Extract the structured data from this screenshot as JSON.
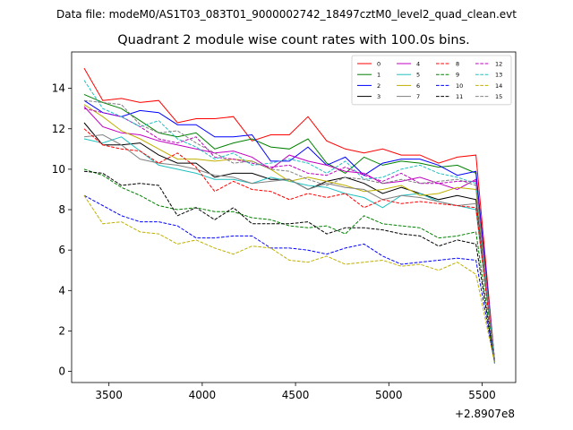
{
  "chart_data": {
    "type": "line",
    "suptitle": "Data file: modeM0/AS1T03_083T01_9000002742_18497cztM0_level2_quad_clean.evt",
    "title": "Quadrant 2 module wise count rates with 100.0s bins.",
    "xlabel": "",
    "ylabel": "",
    "x_offset_label": "+2.8907e8",
    "xlim": [
      3300,
      5680
    ],
    "ylim": [
      -0.55,
      15.8
    ],
    "xticks": [
      3500,
      4000,
      4500,
      5000,
      5500
    ],
    "xtick_labels": [
      "3500",
      "4000",
      "4500",
      "5000",
      "5500"
    ],
    "yticks": [
      0,
      2,
      4,
      6,
      8,
      10,
      12,
      14
    ],
    "ytick_labels": [
      "0",
      "2",
      "4",
      "6",
      "8",
      "10",
      "12",
      "14"
    ],
    "grid": false,
    "legend_position": "top-right",
    "legend_columns": 4,
    "x": [
      3367,
      3467,
      3567,
      3667,
      3767,
      3867,
      3967,
      4067,
      4167,
      4267,
      4367,
      4467,
      4567,
      4667,
      4767,
      4867,
      4967,
      5067,
      5167,
      5267,
      5367,
      5467,
      5567
    ],
    "series": [
      {
        "name": "0",
        "color": "#ff0000",
        "dash": "solid",
        "values": [
          15.0,
          13.4,
          13.5,
          13.3,
          13.4,
          12.3,
          12.5,
          12.5,
          12.6,
          11.4,
          11.7,
          11.7,
          12.6,
          11.4,
          11.0,
          10.8,
          11.0,
          10.7,
          10.7,
          10.3,
          10.6,
          10.7,
          0.5
        ]
      },
      {
        "name": "1",
        "color": "#008000",
        "dash": "solid",
        "values": [
          13.7,
          13.3,
          13.0,
          12.4,
          11.8,
          11.6,
          11.8,
          11.0,
          11.3,
          11.5,
          11.1,
          11.0,
          11.5,
          10.3,
          9.8,
          10.6,
          10.2,
          10.4,
          10.3,
          10.1,
          10.2,
          9.8,
          0.5
        ]
      },
      {
        "name": "2",
        "color": "#0000ff",
        "dash": "solid",
        "values": [
          13.4,
          12.8,
          12.6,
          12.9,
          12.8,
          12.2,
          12.2,
          11.6,
          11.6,
          11.7,
          10.4,
          10.4,
          11.1,
          10.2,
          10.6,
          9.7,
          10.3,
          10.5,
          10.5,
          10.2,
          9.7,
          9.9,
          0.5
        ]
      },
      {
        "name": "3",
        "color": "#000000",
        "dash": "solid",
        "values": [
          12.3,
          11.2,
          11.2,
          11.3,
          10.7,
          10.3,
          10.3,
          9.6,
          9.8,
          9.8,
          9.5,
          9.5,
          9.0,
          9.4,
          9.6,
          9.3,
          8.8,
          9.1,
          8.8,
          8.5,
          8.7,
          8.5,
          0.5
        ]
      },
      {
        "name": "4",
        "color": "#c000c0",
        "dash": "solid",
        "values": [
          13.1,
          12.1,
          11.8,
          11.7,
          11.4,
          11.2,
          11.0,
          10.8,
          10.9,
          10.6,
          10.0,
          10.7,
          10.4,
          10.2,
          9.9,
          9.8,
          9.3,
          9.4,
          9.6,
          9.3,
          9.0,
          9.5,
          0.5
        ]
      },
      {
        "name": "5",
        "color": "#20c0c0",
        "dash": "solid",
        "values": [
          11.5,
          11.3,
          11.6,
          10.9,
          10.2,
          10.0,
          9.8,
          9.5,
          9.5,
          9.3,
          9.6,
          9.4,
          9.2,
          9.1,
          8.8,
          8.6,
          8.1,
          8.7,
          8.8,
          8.4,
          8.2,
          8.0,
          0.5
        ]
      },
      {
        "name": "6",
        "color": "#c0b000",
        "dash": "solid",
        "values": [
          13.2,
          12.6,
          11.9,
          11.5,
          11.0,
          10.5,
          10.5,
          10.4,
          10.5,
          10.4,
          10.0,
          9.4,
          9.6,
          9.4,
          9.2,
          8.9,
          9.0,
          9.2,
          8.7,
          8.8,
          9.1,
          9.0,
          0.5
        ]
      },
      {
        "name": "7",
        "color": "#808080",
        "dash": "solid",
        "values": [
          11.6,
          11.7,
          11.2,
          10.5,
          10.3,
          10.2,
          10.0,
          9.7,
          9.6,
          9.3,
          9.4,
          9.5,
          9.0,
          9.3,
          9.1,
          9.0,
          8.5,
          8.7,
          8.6,
          8.4,
          8.2,
          8.3,
          0.5
        ]
      },
      {
        "name": "8",
        "color": "#ff0000",
        "dash": "dashed",
        "values": [
          12.0,
          11.2,
          11.0,
          10.9,
          10.3,
          10.8,
          10.1,
          8.9,
          9.4,
          9.0,
          8.9,
          8.5,
          8.8,
          8.6,
          8.8,
          8.1,
          8.5,
          8.3,
          8.4,
          8.3,
          8.2,
          8.1,
          0.4
        ]
      },
      {
        "name": "9",
        "color": "#008000",
        "dash": "dashed",
        "values": [
          10.0,
          9.7,
          9.1,
          8.7,
          8.2,
          8.0,
          8.1,
          7.9,
          7.9,
          7.6,
          7.5,
          7.2,
          7.1,
          7.2,
          6.8,
          7.7,
          7.3,
          7.2,
          7.1,
          6.6,
          6.7,
          6.9,
          0.4
        ]
      },
      {
        "name": "10",
        "color": "#0000ff",
        "dash": "dashed",
        "values": [
          8.7,
          8.2,
          7.7,
          7.4,
          7.4,
          7.2,
          6.6,
          6.6,
          6.7,
          6.7,
          6.1,
          6.1,
          6.0,
          5.8,
          6.1,
          6.3,
          5.7,
          5.3,
          5.4,
          5.5,
          5.6,
          5.5,
          0.4
        ]
      },
      {
        "name": "11",
        "color": "#000000",
        "dash": "dashed",
        "values": [
          9.9,
          9.8,
          9.2,
          9.3,
          9.2,
          7.7,
          8.1,
          7.5,
          8.1,
          7.3,
          7.3,
          7.3,
          7.4,
          6.8,
          7.1,
          7.1,
          7.0,
          6.8,
          6.7,
          6.2,
          6.5,
          6.3,
          0.4
        ]
      },
      {
        "name": "12",
        "color": "#c000c0",
        "dash": "dashed",
        "values": [
          13.0,
          12.8,
          12.6,
          12.1,
          11.5,
          11.3,
          11.6,
          10.6,
          10.5,
          10.3,
          10.1,
          10.2,
          9.8,
          9.7,
          10.1,
          9.7,
          9.4,
          9.8,
          9.3,
          9.3,
          9.4,
          9.4,
          0.4
        ]
      },
      {
        "name": "13",
        "color": "#20c0c0",
        "dash": "dashed",
        "values": [
          14.4,
          13.0,
          12.6,
          12.1,
          12.4,
          11.5,
          11.1,
          10.5,
          10.8,
          10.2,
          10.3,
          10.5,
          10.3,
          9.8,
          10.4,
          9.5,
          9.6,
          10.0,
          10.2,
          9.8,
          9.6,
          9.3,
          0.4
        ]
      },
      {
        "name": "14",
        "color": "#c0b000",
        "dash": "dashed",
        "values": [
          8.7,
          7.3,
          7.4,
          6.9,
          6.8,
          6.3,
          6.5,
          6.1,
          5.8,
          6.2,
          6.1,
          5.5,
          5.4,
          5.7,
          5.3,
          5.4,
          5.5,
          5.2,
          5.3,
          5.0,
          5.4,
          4.8,
          0.4
        ]
      },
      {
        "name": "15",
        "color": "#808080",
        "dash": "dashed",
        "values": [
          13.4,
          13.3,
          13.2,
          12.2,
          11.8,
          11.9,
          11.3,
          10.8,
          10.3,
          10.4,
          10.0,
          9.9,
          9.5,
          9.2,
          9.6,
          9.5,
          9.3,
          9.5,
          9.3,
          9.4,
          9.5,
          9.2,
          0.4
        ]
      }
    ]
  }
}
